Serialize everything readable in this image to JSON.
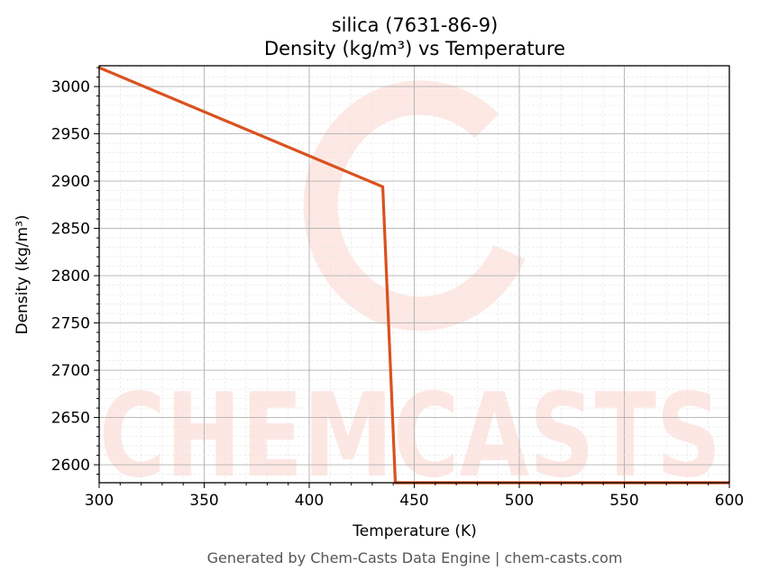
{
  "chart_data": {
    "type": "line",
    "title": "silica (7631-86-9)",
    "subtitle": "Density (kg/m³) vs Temperature",
    "xlabel": "Temperature (K)",
    "ylabel": "Density (kg/m³)",
    "xlim": [
      300,
      600
    ],
    "ylim": [
      2581,
      3022
    ],
    "xticks": [
      300,
      350,
      400,
      450,
      500,
      550,
      600
    ],
    "yticks": [
      2600,
      2650,
      2700,
      2750,
      2800,
      2850,
      2900,
      2950,
      3000
    ],
    "grid": true,
    "series": [
      {
        "name": "Density",
        "color": "#d9521f",
        "x": [
          300,
          435,
          441,
          600
        ],
        "y": [
          3020,
          2894,
          2581,
          2581
        ]
      }
    ]
  },
  "footer": "Generated by Chem-Casts Data Engine | chem-casts.com",
  "watermark": "CHEMCASTS"
}
